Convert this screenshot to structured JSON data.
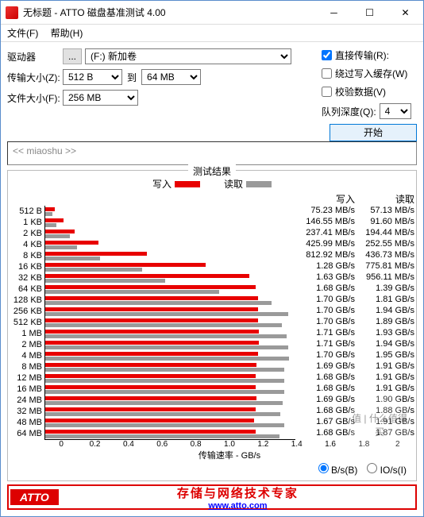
{
  "window": {
    "title": "无标题 - ATTO 磁盘基准测试 4.00",
    "icon_color": "#dd2222"
  },
  "menu": {
    "file": "文件(F)",
    "help": "帮助(H)"
  },
  "controls": {
    "drive_label": "驱动器",
    "browse_btn": "...",
    "drive_value": "(F:) 新加卷",
    "transfer_label": "传输大小(Z):",
    "transfer_from": "512 B",
    "to_label": "到",
    "transfer_to": "64 MB",
    "file_size_label": "文件大小(F):",
    "file_size": "256 MB",
    "direct_io": "直接传输(R):",
    "direct_io_checked": true,
    "bypass_cache": "绕过写入缓存(W)",
    "bypass_cache_checked": false,
    "verify": "校验数据(V)",
    "verify_checked": false,
    "queue_depth_label": "队列深度(Q):",
    "queue_depth": "4",
    "start": "开始",
    "description_placeholder": "<< miaoshu >>"
  },
  "results": {
    "title": "测试结果",
    "write_label": "写入",
    "read_label": "读取",
    "write_color": "#e80000",
    "read_color": "#9a9a9a",
    "xaxis_label": "传输速率 - GB/s",
    "xmax_gb": 2.0,
    "xticks": [
      "0",
      "0.2",
      "0.4",
      "0.6",
      "0.8",
      "1.0",
      "1.2",
      "1.4",
      "1.6",
      "1.8",
      "2"
    ],
    "unit_bs": "B/s(B)",
    "unit_ios": "IO/s(I)",
    "rows": [
      {
        "sz": "512 B",
        "w_gb": 0.075,
        "r_gb": 0.057,
        "w_txt": "75.23 MB/s",
        "r_txt": "57.13 MB/s"
      },
      {
        "sz": "1 KB",
        "w_gb": 0.147,
        "r_gb": 0.092,
        "w_txt": "146.55 MB/s",
        "r_txt": "91.60 MB/s"
      },
      {
        "sz": "2 KB",
        "w_gb": 0.237,
        "r_gb": 0.194,
        "w_txt": "237.41 MB/s",
        "r_txt": "194.44 MB/s"
      },
      {
        "sz": "4 KB",
        "w_gb": 0.426,
        "r_gb": 0.253,
        "w_txt": "425.99 MB/s",
        "r_txt": "252.55 MB/s"
      },
      {
        "sz": "8 KB",
        "w_gb": 0.813,
        "r_gb": 0.437,
        "w_txt": "812.92 MB/s",
        "r_txt": "436.73 MB/s"
      },
      {
        "sz": "16 KB",
        "w_gb": 1.28,
        "r_gb": 0.776,
        "w_txt": "1.28 GB/s",
        "r_txt": "775.81 MB/s"
      },
      {
        "sz": "32 KB",
        "w_gb": 1.63,
        "r_gb": 0.956,
        "w_txt": "1.63 GB/s",
        "r_txt": "956.11 MB/s"
      },
      {
        "sz": "64 KB",
        "w_gb": 1.68,
        "r_gb": 1.39,
        "w_txt": "1.68 GB/s",
        "r_txt": "1.39 GB/s"
      },
      {
        "sz": "128 KB",
        "w_gb": 1.7,
        "r_gb": 1.81,
        "w_txt": "1.70 GB/s",
        "r_txt": "1.81 GB/s"
      },
      {
        "sz": "256 KB",
        "w_gb": 1.7,
        "r_gb": 1.94,
        "w_txt": "1.70 GB/s",
        "r_txt": "1.94 GB/s"
      },
      {
        "sz": "512 KB",
        "w_gb": 1.7,
        "r_gb": 1.89,
        "w_txt": "1.70 GB/s",
        "r_txt": "1.89 GB/s"
      },
      {
        "sz": "1 MB",
        "w_gb": 1.71,
        "r_gb": 1.93,
        "w_txt": "1.71 GB/s",
        "r_txt": "1.93 GB/s"
      },
      {
        "sz": "2 MB",
        "w_gb": 1.71,
        "r_gb": 1.94,
        "w_txt": "1.71 GB/s",
        "r_txt": "1.94 GB/s"
      },
      {
        "sz": "4 MB",
        "w_gb": 1.7,
        "r_gb": 1.95,
        "w_txt": "1.70 GB/s",
        "r_txt": "1.95 GB/s"
      },
      {
        "sz": "8 MB",
        "w_gb": 1.69,
        "r_gb": 1.91,
        "w_txt": "1.69 GB/s",
        "r_txt": "1.91 GB/s"
      },
      {
        "sz": "12 MB",
        "w_gb": 1.68,
        "r_gb": 1.91,
        "w_txt": "1.68 GB/s",
        "r_txt": "1.91 GB/s"
      },
      {
        "sz": "16 MB",
        "w_gb": 1.68,
        "r_gb": 1.91,
        "w_txt": "1.68 GB/s",
        "r_txt": "1.91 GB/s"
      },
      {
        "sz": "24 MB",
        "w_gb": 1.69,
        "r_gb": 1.9,
        "w_txt": "1.69 GB/s",
        "r_txt": "1.90 GB/s"
      },
      {
        "sz": "32 MB",
        "w_gb": 1.68,
        "r_gb": 1.88,
        "w_txt": "1.68 GB/s",
        "r_txt": "1.88 GB/s"
      },
      {
        "sz": "48 MB",
        "w_gb": 1.67,
        "r_gb": 1.91,
        "w_txt": "1.67 GB/s",
        "r_txt": "1.91 GB/s"
      },
      {
        "sz": "64 MB",
        "w_gb": 1.68,
        "r_gb": 1.87,
        "w_txt": "1.68 GB/s",
        "r_txt": "1.87 GB/s"
      }
    ]
  },
  "footer": {
    "logo": "ATTO",
    "slogan": "存储与网络技术专家",
    "url": "www.atto.com"
  },
  "watermark": "值 | 什么值得买"
}
